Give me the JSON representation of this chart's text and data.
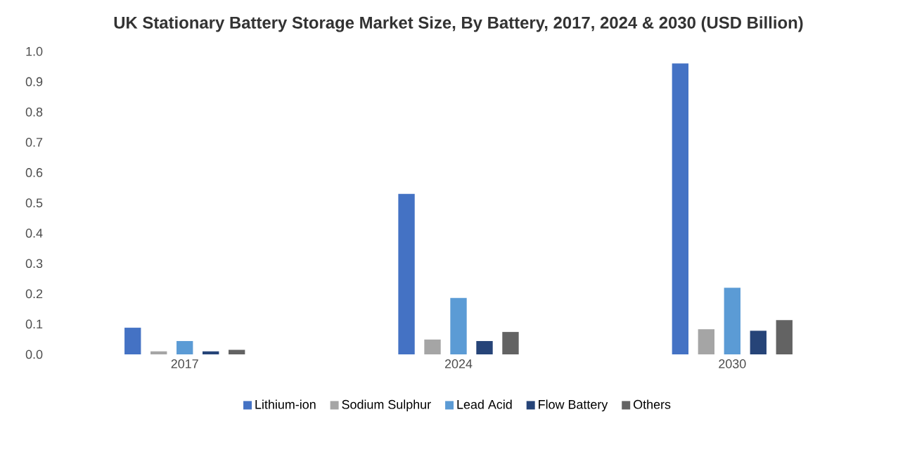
{
  "chart_data": {
    "type": "bar",
    "title": "UK Stationary Battery Storage Market Size, By Battery, 2017, 2024 & 2030 (USD Billion)",
    "categories": [
      "2017",
      "2024",
      "2030"
    ],
    "series": [
      {
        "name": "Lithium-ion",
        "color": "#4472c4",
        "values": [
          0.088,
          0.53,
          0.96
        ]
      },
      {
        "name": "Sodium Sulphur",
        "color": "#a5a5a5",
        "values": [
          0.01,
          0.049,
          0.083
        ]
      },
      {
        "name": "Lead Acid",
        "color": "#5b9bd5",
        "values": [
          0.044,
          0.186,
          0.22
        ]
      },
      {
        "name": "Flow Battery",
        "color": "#264478",
        "values": [
          0.01,
          0.044,
          0.078
        ]
      },
      {
        "name": "Others",
        "color": "#636363",
        "values": [
          0.015,
          0.074,
          0.113
        ]
      }
    ],
    "ylim": [
      0,
      1.0
    ],
    "yticks": [
      {
        "value": 0,
        "label": "0.0"
      },
      0.1,
      0.2,
      0.3,
      0.4,
      0.5,
      0.6,
      0.7,
      0.8,
      0.9,
      {
        "value": 1.0,
        "label": "1.0"
      }
    ],
    "grid": false,
    "legend": "bottom"
  }
}
